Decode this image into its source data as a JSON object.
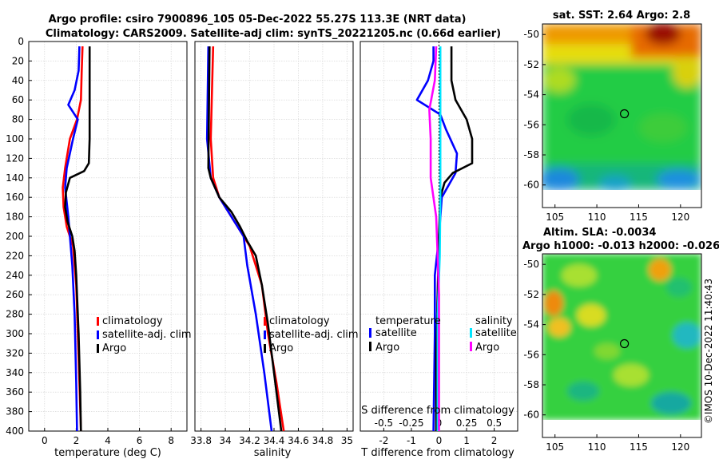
{
  "title": {
    "line1": "Argo profile: csiro 7900896_105 05-Dec-2022 55.27S 113.3E (NRT data)",
    "line2": "Climatology: CARS2009. Satellite-adj clim: synTS_20221205.nc (0.66d earlier)"
  },
  "watermark": "©IMOS 10-Dec-2022 11:40:43",
  "colors": {
    "clim": "#ff0000",
    "sat": "#0000ff",
    "argo": "#000000",
    "sal_sat": "#00e5ff",
    "sal_argo": "#ff00ff"
  },
  "chart_data": [
    {
      "id": "temperature",
      "type": "line",
      "xlabel": "temperature (deg C)",
      "ylabel": "",
      "xlim": [
        -1,
        9
      ],
      "ylim": [
        400,
        0
      ],
      "xticks": [
        0,
        2,
        4,
        6,
        8
      ],
      "yticks": [
        0,
        20,
        40,
        60,
        80,
        100,
        120,
        140,
        160,
        180,
        200,
        220,
        240,
        260,
        280,
        300,
        320,
        340,
        360,
        380,
        400
      ],
      "grid": true,
      "legend": {
        "position": "lower-right",
        "entries": [
          "climatology",
          "satellite-adj. clim",
          "Argo"
        ]
      },
      "series": [
        {
          "name": "climatology",
          "color": "#ff0000",
          "points": [
            [
              2.4,
              5
            ],
            [
              2.35,
              30
            ],
            [
              2.3,
              60
            ],
            [
              2.05,
              80
            ],
            [
              1.6,
              100
            ],
            [
              1.3,
              130
            ],
            [
              1.15,
              150
            ],
            [
              1.2,
              170
            ],
            [
              1.4,
              190
            ],
            [
              1.8,
              210
            ],
            [
              2.0,
              250
            ],
            [
              2.1,
              300
            ],
            [
              2.2,
              350
            ],
            [
              2.3,
              400
            ]
          ]
        },
        {
          "name": "satellite-adj. clim",
          "color": "#0000ff",
          "points": [
            [
              2.2,
              5
            ],
            [
              2.15,
              30
            ],
            [
              1.9,
              50
            ],
            [
              1.5,
              65
            ],
            [
              2.1,
              80
            ],
            [
              1.8,
              100
            ],
            [
              1.4,
              130
            ],
            [
              1.3,
              150
            ],
            [
              1.5,
              180
            ],
            [
              1.6,
              200
            ],
            [
              1.75,
              230
            ],
            [
              1.9,
              280
            ],
            [
              2.0,
              350
            ],
            [
              2.05,
              400
            ]
          ]
        },
        {
          "name": "Argo",
          "color": "#000000",
          "points": [
            [
              2.85,
              5
            ],
            [
              2.85,
              100
            ],
            [
              2.8,
              125
            ],
            [
              2.5,
              133
            ],
            [
              1.6,
              140
            ],
            [
              1.35,
              155
            ],
            [
              1.3,
              170
            ],
            [
              1.45,
              185
            ],
            [
              1.75,
              200
            ],
            [
              1.9,
              215
            ],
            [
              2.0,
              240
            ],
            [
              2.15,
              300
            ],
            [
              2.25,
              360
            ],
            [
              2.3,
              400
            ]
          ]
        }
      ]
    },
    {
      "id": "salinity",
      "type": "line",
      "xlabel": "salinity",
      "ylabel": "",
      "xlim": [
        33.75,
        35.05
      ],
      "ylim": [
        400,
        0
      ],
      "xticks": [
        33.8,
        34,
        34.2,
        34.4,
        34.6,
        34.8,
        35
      ],
      "xtick_labels": [
        "33.8",
        "34",
        "34.2",
        "34.4",
        "34.6",
        "34.8",
        "35"
      ],
      "grid": true,
      "legend": {
        "position": "lower-right",
        "entries": [
          "climatology",
          "satellite-adj. clim",
          "Argo"
        ]
      },
      "series": [
        {
          "name": "climatology",
          "color": "#ff0000",
          "points": [
            [
              33.9,
              5
            ],
            [
              33.88,
              100
            ],
            [
              33.9,
              140
            ],
            [
              33.95,
              160
            ],
            [
              34.05,
              180
            ],
            [
              34.15,
              200
            ],
            [
              34.2,
              210
            ],
            [
              34.3,
              250
            ],
            [
              34.35,
              300
            ],
            [
              34.42,
              350
            ],
            [
              34.48,
              400
            ]
          ]
        },
        {
          "name": "satellite-adj. clim",
          "color": "#0000ff",
          "points": [
            [
              33.86,
              5
            ],
            [
              33.85,
              100
            ],
            [
              33.88,
              140
            ],
            [
              33.95,
              160
            ],
            [
              34.05,
              180
            ],
            [
              34.15,
              200
            ],
            [
              34.18,
              230
            ],
            [
              34.25,
              280
            ],
            [
              34.32,
              340
            ],
            [
              34.38,
              400
            ]
          ]
        },
        {
          "name": "Argo",
          "color": "#000000",
          "points": [
            [
              33.87,
              5
            ],
            [
              33.86,
              130
            ],
            [
              33.88,
              140
            ],
            [
              33.95,
              160
            ],
            [
              34.05,
              175
            ],
            [
              34.12,
              190
            ],
            [
              34.18,
              205
            ],
            [
              34.25,
              220
            ],
            [
              34.3,
              250
            ],
            [
              34.35,
              290
            ],
            [
              34.4,
              340
            ],
            [
              34.46,
              400
            ]
          ]
        }
      ]
    },
    {
      "id": "difference",
      "type": "line",
      "xlabel": "T difference from climatology",
      "xlabel_top": "S difference from climatology",
      "xlim": [
        -2.85,
        2.85
      ],
      "ylim": [
        400,
        0
      ],
      "xticks": [
        -2,
        -1,
        0,
        1,
        2
      ],
      "xtick_labels": [
        "-2",
        "-1",
        "0",
        "1",
        "2"
      ],
      "xticks_top": [
        -2,
        -1,
        0,
        1,
        2
      ],
      "xtick_labels_top": [
        "-0.5",
        "-0.25",
        "0",
        "0.25",
        "0.5"
      ],
      "grid": true,
      "legend_left": {
        "title": "temperature",
        "entries": [
          "satellite",
          "Argo"
        ]
      },
      "legend_right": {
        "title": "salinity",
        "entries": [
          "satellite",
          "Argo"
        ]
      },
      "series": [
        {
          "name": "temperature satellite",
          "color": "#0000ff",
          "points": [
            [
              -0.2,
              5
            ],
            [
              -0.2,
              20
            ],
            [
              -0.4,
              40
            ],
            [
              -0.8,
              60
            ],
            [
              0.05,
              75
            ],
            [
              0.25,
              90
            ],
            [
              0.65,
              115
            ],
            [
              0.6,
              135
            ],
            [
              0.1,
              160
            ],
            [
              0.0,
              200
            ],
            [
              -0.15,
              240
            ],
            [
              -0.15,
              300
            ],
            [
              -0.2,
              400
            ]
          ]
        },
        {
          "name": "temperature Argo",
          "color": "#000000",
          "points": [
            [
              0.45,
              5
            ],
            [
              0.45,
              40
            ],
            [
              0.6,
              60
            ],
            [
              1.0,
              80
            ],
            [
              1.2,
              100
            ],
            [
              1.2,
              125
            ],
            [
              0.5,
              135
            ],
            [
              0.2,
              145
            ],
            [
              0.05,
              160
            ],
            [
              0.0,
              200
            ],
            [
              -0.05,
              260
            ],
            [
              -0.1,
              320
            ],
            [
              -0.1,
              400
            ]
          ]
        },
        {
          "name": "salinity satellite",
          "color": "#00e5ff",
          "points": [
            [
              0.05,
              5
            ],
            [
              0.05,
              100
            ],
            [
              0.05,
              160
            ],
            [
              0.03,
              220
            ],
            [
              -0.05,
              280
            ],
            [
              -0.05,
              400
            ]
          ]
        },
        {
          "name": "salinity Argo",
          "color": "#ff00ff",
          "points": [
            [
              -0.1,
              5
            ],
            [
              -0.15,
              40
            ],
            [
              -0.35,
              70
            ],
            [
              -0.3,
              100
            ],
            [
              -0.3,
              140
            ],
            [
              -0.1,
              180
            ],
            [
              -0.05,
              220
            ],
            [
              0.0,
              260
            ],
            [
              0.0,
              320
            ],
            [
              0.0,
              400
            ]
          ]
        }
      ]
    },
    {
      "id": "sst-map",
      "type": "heatmap",
      "title": "sat. SST: 2.64 Argo: 2.8",
      "xlim": [
        103.5,
        122.5
      ],
      "ylim": [
        -61.5,
        -49.3
      ],
      "xticks": [
        105,
        110,
        115,
        120
      ],
      "yticks": [
        -50,
        -52,
        -54,
        -56,
        -58,
        -60
      ],
      "marker": {
        "lon": 113.3,
        "lat": -55.27
      }
    },
    {
      "id": "sla-map",
      "type": "heatmap",
      "title": "Altim. SLA: -0.0034",
      "title2": "Argo h1000: -0.013 h2000: -0.026",
      "xlim": [
        103.5,
        122.5
      ],
      "ylim": [
        -61.5,
        -49.3
      ],
      "xticks": [
        105,
        110,
        115,
        120
      ],
      "yticks": [
        -50,
        -52,
        -54,
        -56,
        -58,
        -60
      ],
      "marker": {
        "lon": 113.3,
        "lat": -55.27
      }
    }
  ]
}
